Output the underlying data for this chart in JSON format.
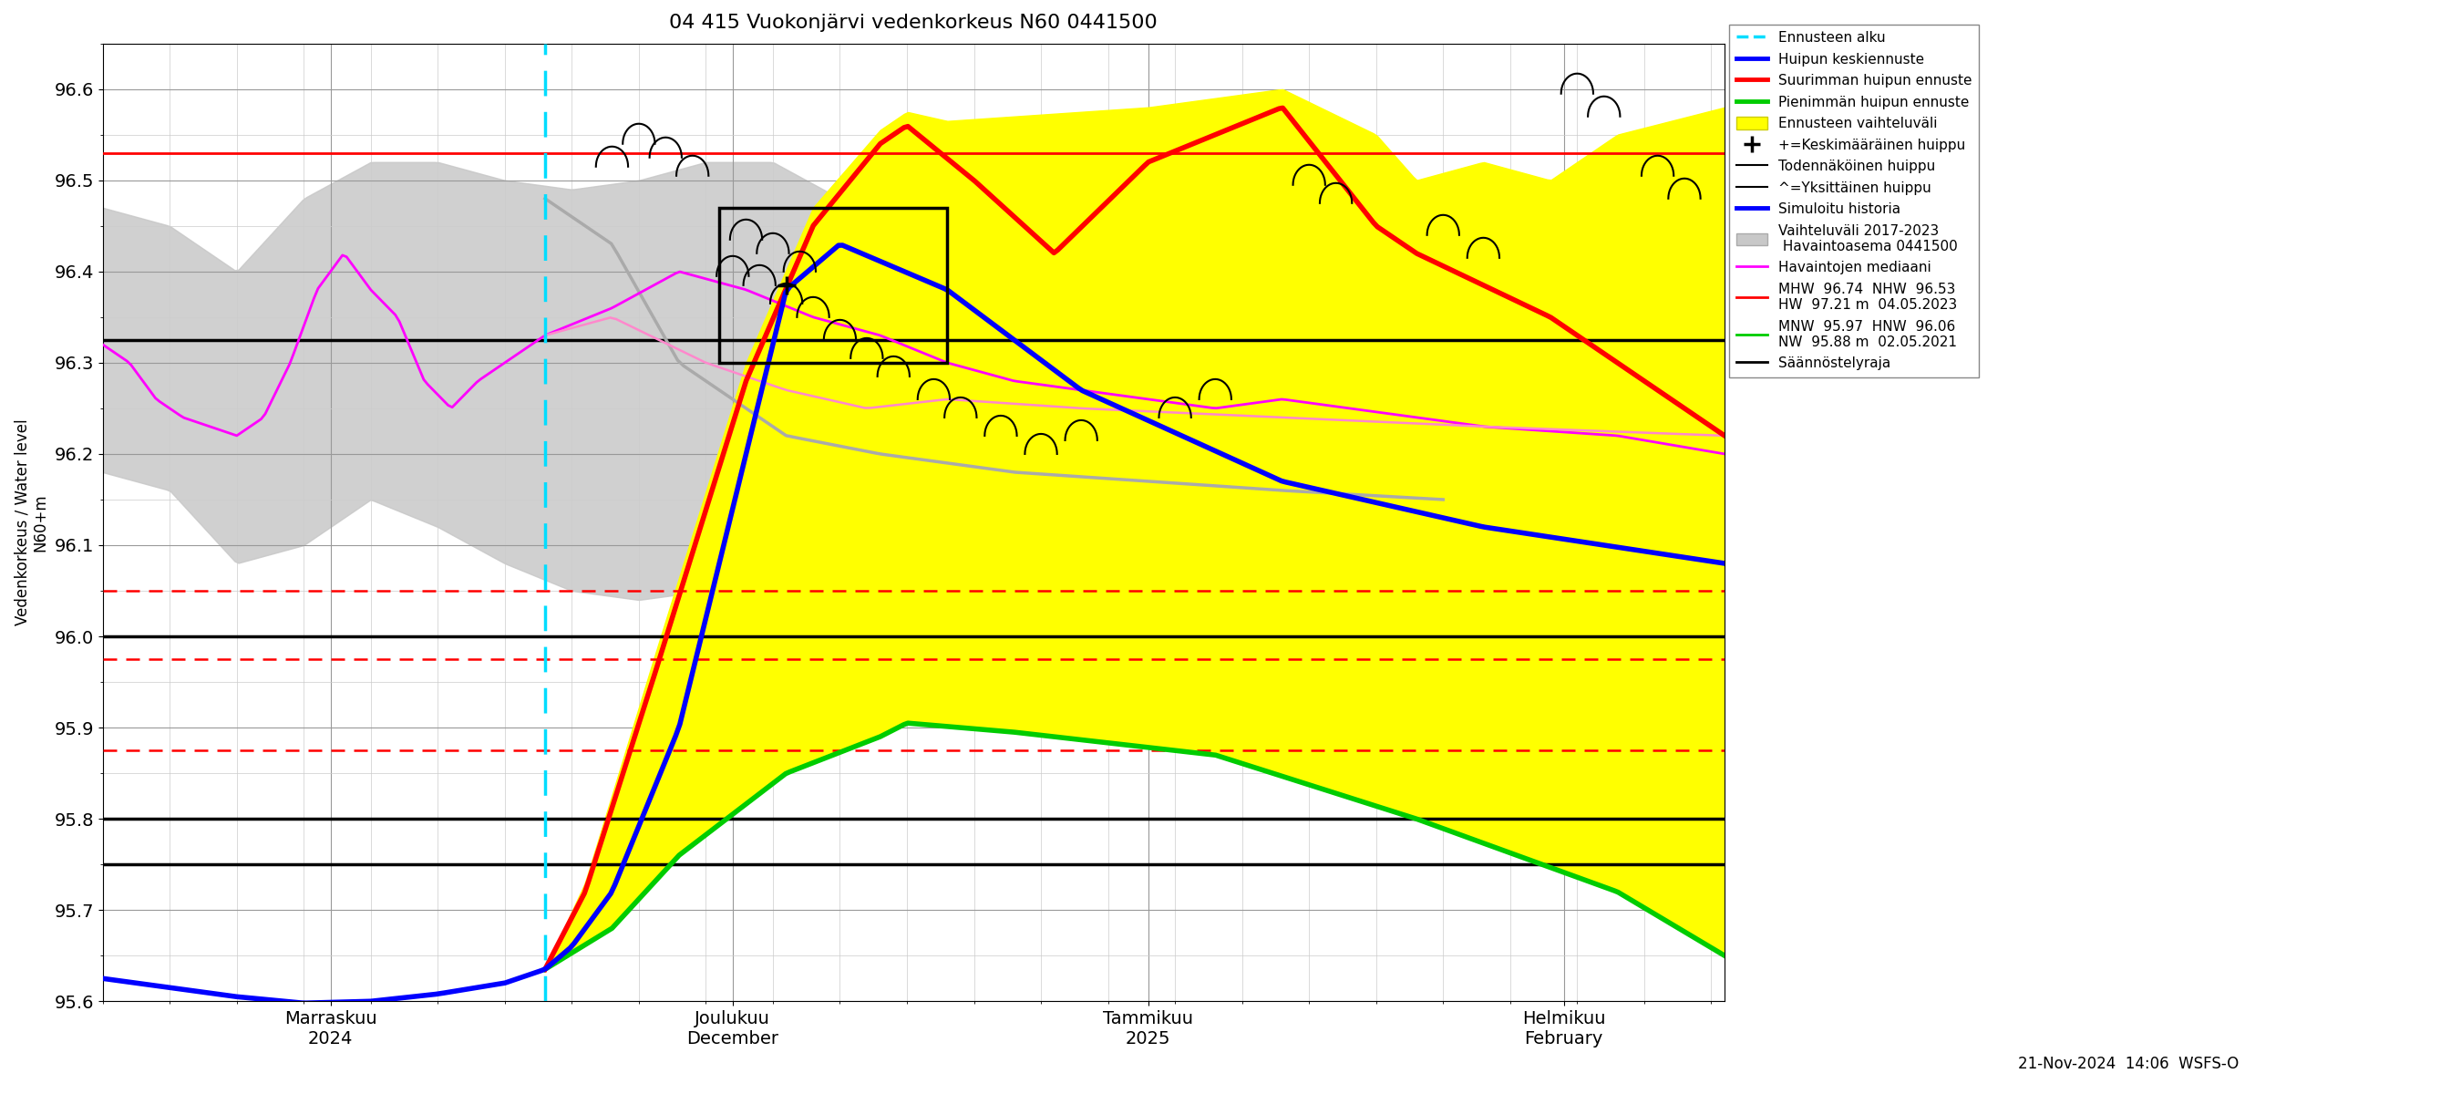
{
  "title": "04 415 Vuokonjärvi vedenkorkeus N60 0441500",
  "ylabel_left": "Vedenkorkeus / Water level",
  "ylabel_right": "N60+m",
  "ylim": [
    95.6,
    96.65
  ],
  "yticks": [
    95.6,
    95.7,
    95.8,
    95.9,
    96.0,
    96.1,
    96.2,
    96.3,
    96.4,
    96.5,
    96.6
  ],
  "xlim": [
    0,
    121
  ],
  "forecast_start_day": 33,
  "hline_black": [
    96.325,
    96.0,
    95.8,
    95.75
  ],
  "hline_red_dashed": [
    96.05,
    95.975,
    95.875
  ],
  "hline_red_solid": [
    96.53
  ],
  "background_color": "#ffffff",
  "title_fontsize": 16,
  "bottom_text": "21-Nov-2024  14:06  WSFS-O",
  "xtick_labels": [
    "Marraskuu\n2024",
    "Joulukuu\nDecember",
    "Tammikuu\n2025",
    "Helmikuu\nFebruary"
  ],
  "xtick_positions": [
    17,
    47,
    78,
    109
  ],
  "rect_x0": 46,
  "rect_x1": 63,
  "rect_y0": 96.3,
  "rect_y1": 96.47
}
